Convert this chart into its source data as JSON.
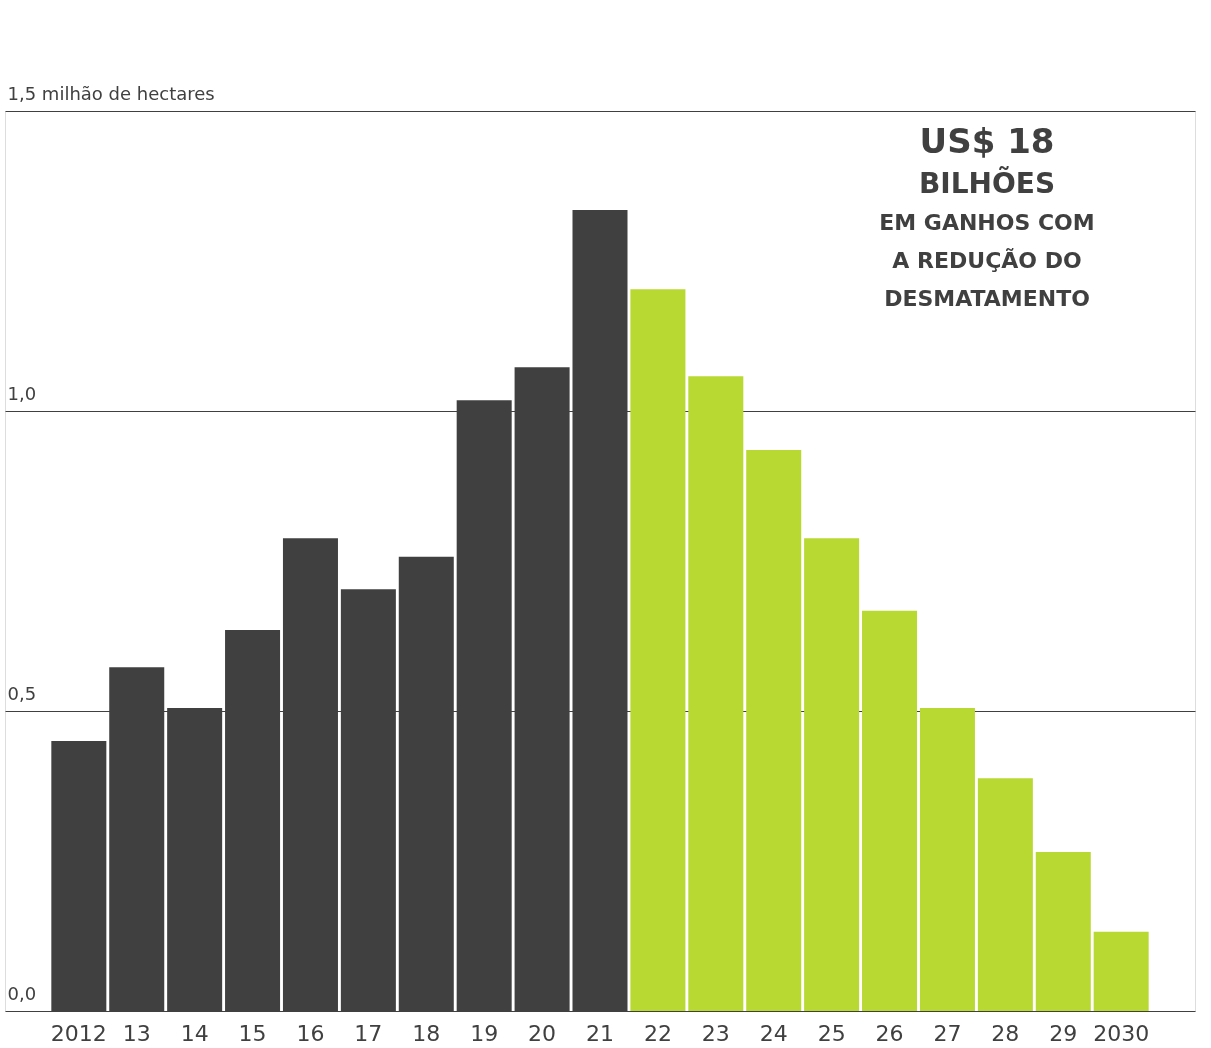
{
  "chart_data": {
    "type": "bar",
    "categories": [
      "2012",
      "13",
      "14",
      "15",
      "16",
      "17",
      "18",
      "19",
      "20",
      "21",
      "22",
      "23",
      "24",
      "25",
      "26",
      "27",
      "28",
      "29",
      "2030"
    ],
    "values": [
      0.45,
      0.573,
      0.505,
      0.635,
      0.788,
      0.703,
      0.757,
      1.018,
      1.073,
      1.335,
      1.203,
      1.058,
      0.935,
      0.788,
      0.667,
      0.505,
      0.388,
      0.265,
      0.132
    ],
    "colors": [
      "#404041",
      "#404041",
      "#404041",
      "#404041",
      "#404041",
      "#404041",
      "#404041",
      "#404041",
      "#404041",
      "#404041",
      "#b8d832",
      "#b8d832",
      "#b8d832",
      "#b8d832",
      "#b8d832",
      "#b8d832",
      "#b8d832",
      "#b8d832",
      "#b8d832"
    ],
    "ylim": [
      0,
      1.5
    ],
    "yticks": [
      {
        "value": 0,
        "label": "0,0"
      },
      {
        "value": 0.5,
        "label": "0,5"
      },
      {
        "value": 1.0,
        "label": "1,0"
      },
      {
        "value": 1.5,
        "label": "1,5 milhão de hectares"
      }
    ],
    "grid": "y",
    "annotations": [
      "US$ 18",
      "BILHÕES",
      "EM GANHOS COM",
      "A REDUÇÃO DO",
      "DESMATAMENTO"
    ]
  }
}
